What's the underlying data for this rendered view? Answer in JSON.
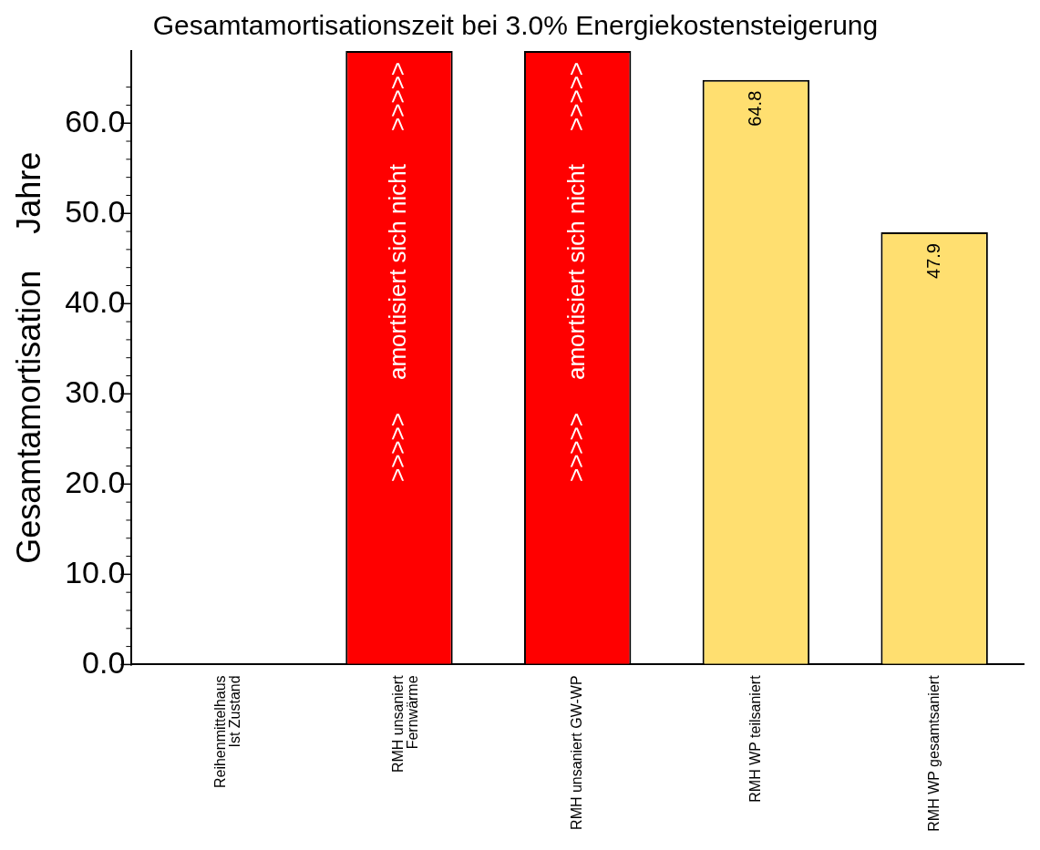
{
  "chart_data": {
    "type": "bar",
    "title": "Gesamtamortisationszeit bei 3.0% Energiekostensteigerung",
    "ylabel": "Gesamtamortisation    Jahre",
    "categories": [
      "Reihenmittelhaus\nIst Zustand",
      "RMH unsaniert\nFernwärme",
      "RMH unsaniert GW-WP",
      "RMH WP teilsaniert",
      "RMH WP gesamtsaniert"
    ],
    "values": [
      null,
      68,
      68,
      64.8,
      47.9
    ],
    "colors": [
      "#ff0000",
      "#ff0000",
      "#ff0000",
      "#ffdf70",
      "#ffdf70"
    ],
    "value_labels": [
      null,
      ">>>>>     amortisiert sich nicht     >>>>>",
      ">>>>>     amortisiert sich nicht     >>>>>",
      "64.8",
      "47.9"
    ],
    "ylim": [
      0,
      68
    ],
    "yticks": [
      {
        "value": 0,
        "label": "0.0"
      },
      {
        "value": 2,
        "label": null
      },
      {
        "value": 4,
        "label": null
      },
      {
        "value": 6,
        "label": null
      },
      {
        "value": 8,
        "label": null
      },
      {
        "value": 10,
        "label": "10.0"
      },
      {
        "value": 12,
        "label": null
      },
      {
        "value": 14,
        "label": null
      },
      {
        "value": 16,
        "label": null
      },
      {
        "value": 18,
        "label": null
      },
      {
        "value": 20,
        "label": "20.0"
      },
      {
        "value": 22,
        "label": null
      },
      {
        "value": 24,
        "label": null
      },
      {
        "value": 26,
        "label": null
      },
      {
        "value": 28,
        "label": null
      },
      {
        "value": 30,
        "label": "30.0"
      },
      {
        "value": 32,
        "label": null
      },
      {
        "value": 34,
        "label": null
      },
      {
        "value": 36,
        "label": null
      },
      {
        "value": 38,
        "label": null
      },
      {
        "value": 40,
        "label": "40.0"
      },
      {
        "value": 42,
        "label": null
      },
      {
        "value": 44,
        "label": null
      },
      {
        "value": 46,
        "label": null
      },
      {
        "value": 48,
        "label": null
      },
      {
        "value": 50,
        "label": "50.0"
      },
      {
        "value": 52,
        "label": null
      },
      {
        "value": 54,
        "label": null
      },
      {
        "value": 56,
        "label": null
      },
      {
        "value": 58,
        "label": null
      },
      {
        "value": 60,
        "label": "60.0"
      },
      {
        "value": 62,
        "label": null
      },
      {
        "value": 64,
        "label": null
      }
    ],
    "grid": false,
    "legend": false
  }
}
